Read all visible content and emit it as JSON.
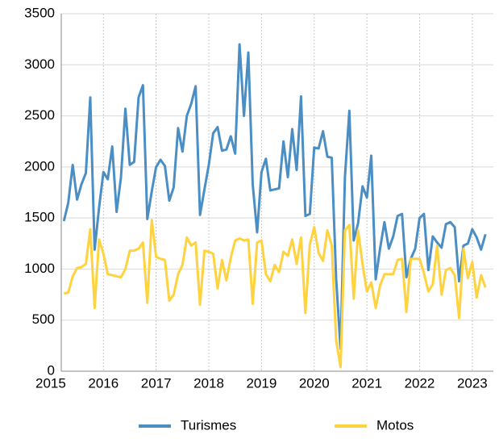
{
  "chart_data": {
    "type": "line",
    "x": [
      2015.25,
      2015.333,
      2015.417,
      2015.5,
      2015.583,
      2015.667,
      2015.75,
      2015.833,
      2015.917,
      2016.0,
      2016.083,
      2016.167,
      2016.25,
      2016.333,
      2016.417,
      2016.5,
      2016.583,
      2016.667,
      2016.75,
      2016.833,
      2016.917,
      2017.0,
      2017.083,
      2017.167,
      2017.25,
      2017.333,
      2017.417,
      2017.5,
      2017.583,
      2017.667,
      2017.75,
      2017.833,
      2017.917,
      2018.0,
      2018.083,
      2018.167,
      2018.25,
      2018.333,
      2018.417,
      2018.5,
      2018.583,
      2018.667,
      2018.75,
      2018.833,
      2018.917,
      2019.0,
      2019.083,
      2019.167,
      2019.25,
      2019.333,
      2019.417,
      2019.5,
      2019.583,
      2019.667,
      2019.75,
      2019.833,
      2019.917,
      2020.0,
      2020.083,
      2020.167,
      2020.25,
      2020.333,
      2020.417,
      2020.5,
      2020.583,
      2020.667,
      2020.75,
      2020.833,
      2020.917,
      2021.0,
      2021.083,
      2021.167,
      2021.25,
      2021.333,
      2021.417,
      2021.5,
      2021.583,
      2021.667,
      2021.75,
      2021.833,
      2021.917,
      2022.0,
      2022.083,
      2022.167,
      2022.25,
      2022.333,
      2022.417,
      2022.5,
      2022.583,
      2022.667,
      2022.75,
      2022.833,
      2022.917,
      2023.0,
      2023.083,
      2023.167,
      2023.25
    ],
    "series": [
      {
        "name": "Turismes",
        "color": "#4a8ec4",
        "values": [
          1470,
          1650,
          2020,
          1680,
          1830,
          1940,
          2680,
          1190,
          1600,
          1950,
          1880,
          2200,
          1560,
          1900,
          2570,
          2020,
          2050,
          2680,
          2800,
          1490,
          1760,
          2000,
          2070,
          2010,
          1670,
          1800,
          2380,
          2150,
          2500,
          2620,
          2790,
          1530,
          1780,
          2020,
          2330,
          2390,
          2160,
          2170,
          2300,
          2130,
          3200,
          2500,
          3120,
          1830,
          1360,
          1950,
          2080,
          1770,
          1780,
          1790,
          2250,
          1900,
          2370,
          1970,
          2690,
          1520,
          1540,
          2190,
          2180,
          2350,
          2100,
          2090,
          900,
          220,
          1900,
          2550,
          1280,
          1450,
          1810,
          1700,
          2110,
          900,
          1200,
          1460,
          1200,
          1320,
          1520,
          1540,
          920,
          1100,
          1200,
          1500,
          1540,
          990,
          1320,
          1260,
          1210,
          1440,
          1460,
          1410,
          880,
          1230,
          1250,
          1390,
          1310,
          1190,
          1340
        ]
      },
      {
        "name": "Motos",
        "color": "#ffd23f",
        "values": [
          760,
          770,
          930,
          1010,
          1020,
          1050,
          1390,
          620,
          1290,
          1150,
          950,
          940,
          930,
          920,
          1000,
          1180,
          1180,
          1200,
          1260,
          670,
          1480,
          1120,
          1100,
          1090,
          690,
          750,
          950,
          1040,
          1310,
          1230,
          1260,
          650,
          1180,
          1170,
          1150,
          810,
          1090,
          890,
          1110,
          1280,
          1300,
          1280,
          1290,
          660,
          1260,
          1280,
          950,
          880,
          1040,
          970,
          1170,
          1130,
          1290,
          1050,
          1310,
          570,
          1240,
          1410,
          1160,
          1080,
          1380,
          1230,
          300,
          40,
          1380,
          1430,
          710,
          1380,
          1050,
          780,
          870,
          620,
          840,
          950,
          950,
          950,
          1090,
          1100,
          580,
          1100,
          1100,
          1100,
          960,
          780,
          850,
          1230,
          750,
          990,
          1010,
          940,
          520,
          1200,
          910,
          1070,
          720,
          940,
          820
        ]
      }
    ],
    "xlim": [
      2015.2,
      2023.4
    ],
    "xticks": [
      2015,
      2016,
      2017,
      2018,
      2019,
      2020,
      2021,
      2022,
      2023
    ],
    "ylim": [
      0,
      3500
    ],
    "yticks": [
      0,
      500,
      1000,
      1500,
      2000,
      2500,
      3000,
      3500
    ],
    "grid": true,
    "legend": "bottom"
  }
}
